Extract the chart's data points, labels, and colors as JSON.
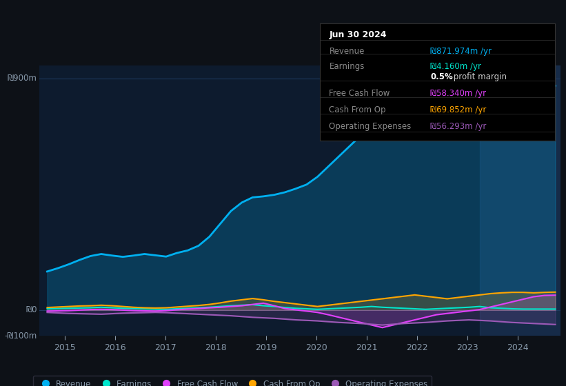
{
  "bg_color": "#0d1117",
  "plot_bg_color": "#0d1b2e",
  "ylim": [
    -100,
    950
  ],
  "xlim": [
    2014.5,
    2024.85
  ],
  "ytick_labels": [
    "₪900m",
    "₪0",
    "-₪100m"
  ],
  "ytick_values": [
    900,
    0,
    -100
  ],
  "xticks": [
    2015,
    2016,
    2017,
    2018,
    2019,
    2020,
    2021,
    2022,
    2023,
    2024
  ],
  "legend_items": [
    "Revenue",
    "Earnings",
    "Free Cash Flow",
    "Cash From Op",
    "Operating Expenses"
  ],
  "legend_colors": [
    "#00b0f0",
    "#00e5cc",
    "#e040fb",
    "#ffa500",
    "#9b59b6"
  ],
  "info_box": {
    "title": "Jun 30 2024",
    "rows": [
      {
        "label": "Revenue",
        "value": "₪871.974m /yr",
        "value_color": "#00b0f0"
      },
      {
        "label": "Earnings",
        "value": "₪4.160m /yr",
        "value_color": "#00e5cc"
      },
      {
        "label": "",
        "value": "0.5% profit margin",
        "value_color": "#ffffff",
        "bold_part": "0.5%"
      },
      {
        "label": "Free Cash Flow",
        "value": "₪58.340m /yr",
        "value_color": "#e040fb"
      },
      {
        "label": "Cash From Op",
        "value": "₪69.852m /yr",
        "value_color": "#ffa500"
      },
      {
        "label": "Operating Expenses",
        "value": "₪56.293m /yr",
        "value_color": "#9b59b6"
      }
    ]
  },
  "revenue": [
    150,
    163,
    178,
    195,
    210,
    218,
    212,
    207,
    212,
    218,
    213,
    208,
    222,
    232,
    250,
    285,
    335,
    385,
    418,
    438,
    442,
    448,
    458,
    472,
    488,
    518,
    558,
    598,
    638,
    678,
    718,
    758,
    788,
    818,
    838,
    828,
    808,
    798,
    808,
    828,
    838,
    843,
    848,
    853,
    858,
    868,
    873,
    872
  ],
  "earnings": [
    5,
    6,
    7,
    8,
    9,
    11,
    9,
    7,
    6,
    5,
    4,
    3,
    5,
    7,
    9,
    11,
    14,
    17,
    19,
    21,
    17,
    14,
    10,
    7,
    5,
    3,
    5,
    7,
    9,
    11,
    14,
    11,
    9,
    7,
    5,
    3,
    5,
    7,
    9,
    11,
    14,
    9,
    7,
    5,
    4,
    4,
    4,
    4
  ],
  "free_cash_flow": [
    -4,
    -3,
    -2,
    0,
    2,
    3,
    2,
    0,
    -2,
    -3,
    -4,
    -2,
    1,
    4,
    6,
    9,
    11,
    14,
    17,
    22,
    27,
    17,
    6,
    1,
    -4,
    -9,
    -18,
    -28,
    -38,
    -48,
    -58,
    -68,
    -58,
    -48,
    -38,
    -28,
    -18,
    -13,
    -8,
    -3,
    2,
    12,
    22,
    32,
    42,
    52,
    57,
    58
  ],
  "cash_from_op": [
    10,
    12,
    14,
    16,
    17,
    19,
    17,
    14,
    11,
    9,
    8,
    9,
    12,
    15,
    18,
    22,
    28,
    35,
    40,
    45,
    40,
    34,
    29,
    24,
    19,
    14,
    19,
    24,
    29,
    34,
    39,
    44,
    49,
    54,
    59,
    54,
    49,
    44,
    49,
    54,
    59,
    64,
    67,
    69,
    69,
    67,
    69,
    70
  ],
  "operating_expenses": [
    -9,
    -11,
    -13,
    -14,
    -15,
    -16,
    -14,
    -12,
    -11,
    -10,
    -9,
    -10,
    -12,
    -14,
    -16,
    -18,
    -20,
    -22,
    -25,
    -28,
    -30,
    -32,
    -35,
    -38,
    -40,
    -42,
    -45,
    -48,
    -50,
    -52,
    -55,
    -58,
    -55,
    -52,
    -50,
    -48,
    -45,
    -42,
    -40,
    -38,
    -40,
    -42,
    -45,
    -48,
    -50,
    -52,
    -54,
    -56
  ],
  "revenue_color": "#00b0f0",
  "earnings_color": "#00e5cc",
  "fcf_color": "#e040fb",
  "cop_color": "#ffa500",
  "opex_color": "#9b59b6",
  "grid_color": "#1e3a5f",
  "text_color": "#8899aa",
  "highlight_start": 2023.25,
  "highlight_end": 2024.85
}
